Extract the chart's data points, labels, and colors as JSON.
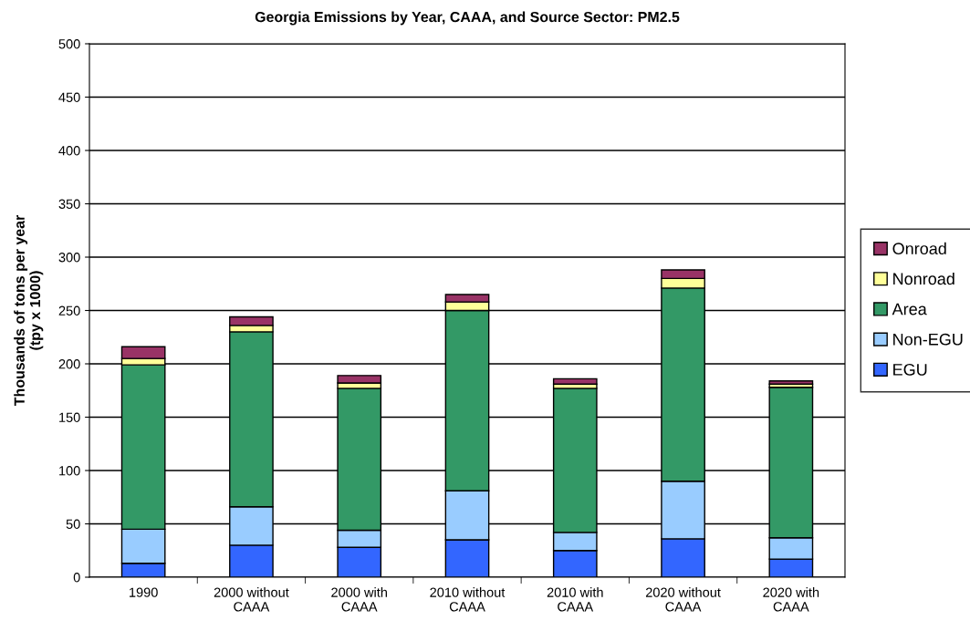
{
  "chart_data": {
    "type": "bar",
    "stacked": true,
    "title": "Georgia Emissions by Year, CAAA, and Source Sector: PM2.5",
    "ylabel": "Thousands of tons per year\n(tpy x 1000)",
    "categories": [
      "1990",
      "2000 without\nCAAA",
      "2000 with\nCAAA",
      "2010 without\nCAAA",
      "2010 with\nCAAA",
      "2020 without\nCAAA",
      "2020 with\nCAAA"
    ],
    "series": [
      {
        "name": "EGU",
        "color": "#3366ff",
        "values": [
          13,
          30,
          28,
          35,
          25,
          36,
          17
        ]
      },
      {
        "name": "Non-EGU",
        "color": "#99ccff",
        "values": [
          32,
          36,
          16,
          46,
          17,
          54,
          20
        ]
      },
      {
        "name": "Area",
        "color": "#339966",
        "values": [
          154,
          164,
          133,
          169,
          135,
          181,
          141
        ]
      },
      {
        "name": "Nonroad",
        "color": "#ffff99",
        "values": [
          6,
          6,
          5,
          8,
          4,
          9,
          3
        ]
      },
      {
        "name": "Onroad",
        "color": "#993366",
        "values": [
          11,
          8,
          7,
          7,
          5,
          8,
          3
        ]
      }
    ],
    "ylim": [
      0,
      500
    ],
    "yticks": [
      0,
      50,
      100,
      150,
      200,
      250,
      300,
      350,
      400,
      450,
      500
    ],
    "grid": "y",
    "legend": "right"
  }
}
